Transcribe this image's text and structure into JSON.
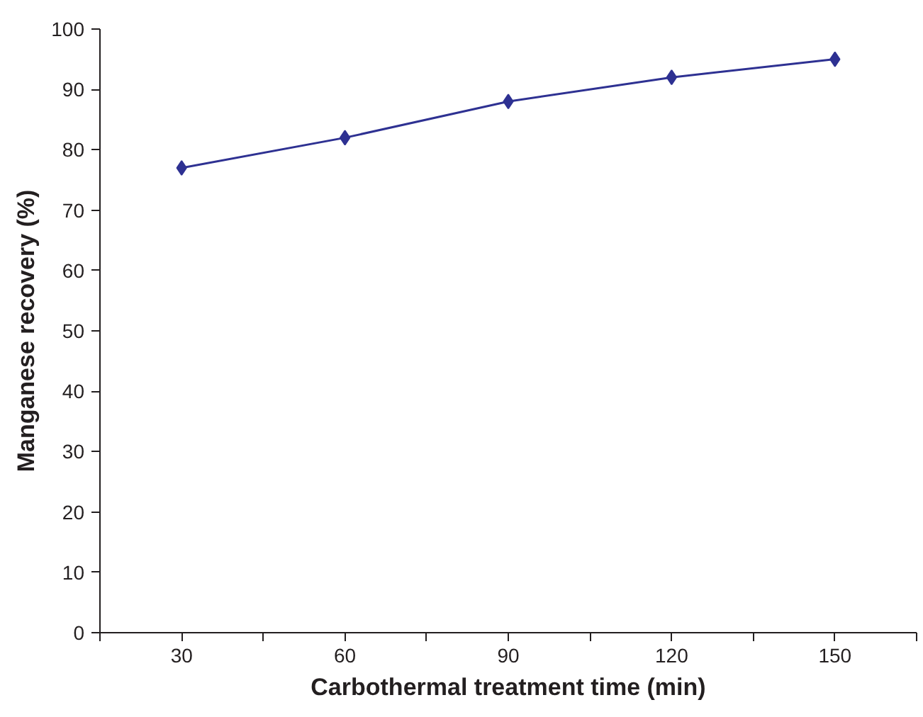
{
  "chart_data": {
    "type": "line",
    "xlabel": "Carbothermal treatment time (min)",
    "ylabel": "Manganese recovery (%)",
    "x": [
      30,
      60,
      90,
      120,
      150
    ],
    "series": [
      {
        "color": "#2e3192",
        "values": [
          77,
          82,
          88,
          92,
          95
        ]
      }
    ],
    "xlim": [
      15,
      165
    ],
    "xticks": [
      {
        "value": 15,
        "label": null
      },
      30,
      {
        "value": 45,
        "label": null
      },
      60,
      {
        "value": 75,
        "label": null
      },
      90,
      {
        "value": 105,
        "label": null
      },
      120,
      {
        "value": 135,
        "label": null
      },
      150,
      {
        "value": 165,
        "label": null
      }
    ],
    "ylim": [
      0,
      100
    ],
    "yticks": [
      0,
      10,
      20,
      30,
      40,
      50,
      60,
      70,
      80,
      90,
      100
    ],
    "grid": false,
    "marker": "diamond",
    "line_style": "solid"
  }
}
